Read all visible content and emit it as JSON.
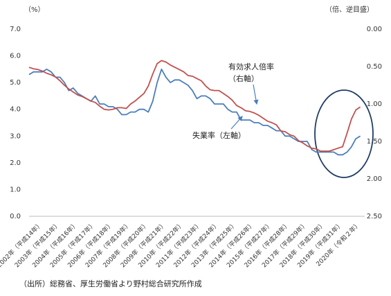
{
  "chart_data": {
    "type": "line",
    "y_unit_label": "（%）",
    "y2_unit_label": "（倍、逆目盛）",
    "source": "（出所）総務省、厚生労働省より野村総合研究所作成",
    "annotations": [
      "有効求人倍率",
      "（右軸）",
      "失業率（左軸）"
    ],
    "x": [
      2002,
      2002.25,
      2002.5,
      2002.75,
      2003,
      2003.25,
      2003.5,
      2003.75,
      2004,
      2004.25,
      2004.5,
      2004.75,
      2005,
      2005.25,
      2005.5,
      2005.75,
      2006,
      2006.25,
      2006.5,
      2006.75,
      2007,
      2007.25,
      2007.5,
      2007.75,
      2008,
      2008.25,
      2008.5,
      2008.75,
      2009,
      2009.25,
      2009.5,
      2009.75,
      2010,
      2010.25,
      2010.5,
      2010.75,
      2011,
      2011.25,
      2011.5,
      2011.75,
      2012,
      2012.25,
      2012.5,
      2012.75,
      2013,
      2013.25,
      2013.5,
      2013.75,
      2014,
      2014.25,
      2014.5,
      2014.75,
      2015,
      2015.25,
      2015.5,
      2015.75,
      2016,
      2016.25,
      2016.5,
      2016.75,
      2017,
      2017.25,
      2017.5,
      2017.75,
      2018,
      2018.25,
      2018.5,
      2018.75,
      2019,
      2019.25,
      2019.5,
      2019.75,
      2020,
      2020.25,
      2020.5,
      2020.75
    ],
    "xlim": [
      2002,
      2021
    ],
    "xticks": [
      {
        "value": 2002,
        "label": "2002年（平成14年）"
      },
      {
        "value": 2003,
        "label": "2003年（平成15年）"
      },
      {
        "value": 2004,
        "label": "2004年（平成16年）"
      },
      {
        "value": 2005,
        "label": "2005年（平成17年）"
      },
      {
        "value": 2006,
        "label": "2006年（平成18年）"
      },
      {
        "value": 2007,
        "label": "2007年（平成19年）"
      },
      {
        "value": 2008,
        "label": "2008年（平成20年）"
      },
      {
        "value": 2009,
        "label": "2009年（平成21年）"
      },
      {
        "value": 2010,
        "label": "2010年（平成22年）"
      },
      {
        "value": 2011,
        "label": "2011年（平成23年）"
      },
      {
        "value": 2012,
        "label": "2012年（平成24年）"
      },
      {
        "value": 2013,
        "label": "2013年（平成25年）"
      },
      {
        "value": 2014,
        "label": "2014年（平成26年）"
      },
      {
        "value": 2015,
        "label": "2015年（平成27年）"
      },
      {
        "value": 2016,
        "label": "2016年（平成28年）"
      },
      {
        "value": 2017,
        "label": "2017年（平成29年）"
      },
      {
        "value": 2018,
        "label": "2018年（平成30年）"
      },
      {
        "value": 2019,
        "label": "2019年（平成31年）"
      },
      {
        "value": 2020,
        "label": "2020年（令和２年）"
      }
    ],
    "ylim": [
      0,
      7
    ],
    "yticks": [
      {
        "value": 0,
        "label": "0.0"
      },
      {
        "value": 1,
        "label": "1.0"
      },
      {
        "value": 2,
        "label": "2.0"
      },
      {
        "value": 3,
        "label": "3.0"
      },
      {
        "value": 4,
        "label": "4.0"
      },
      {
        "value": 5,
        "label": "5.0"
      },
      {
        "value": 6,
        "label": "6.0"
      },
      {
        "value": 7,
        "label": "7.0"
      }
    ],
    "y2lim": [
      2.5,
      0
    ],
    "y2ticks": [
      {
        "value": 0,
        "label": "0.00"
      },
      {
        "value": 0.5,
        "label": "0.50"
      },
      {
        "value": 1,
        "label": "1.00"
      },
      {
        "value": 1.5,
        "label": "1.50"
      },
      {
        "value": 2,
        "label": "2.00"
      },
      {
        "value": 2.5,
        "label": "2.50"
      }
    ],
    "series": [
      {
        "color": "#4a7ebb",
        "axis": "y",
        "values": [
          5.3,
          5.4,
          5.4,
          5.4,
          5.5,
          5.4,
          5.2,
          5.2,
          5.0,
          4.7,
          4.8,
          4.6,
          4.5,
          4.4,
          4.3,
          4.5,
          4.2,
          4.2,
          4.1,
          4.1,
          4.0,
          3.8,
          3.8,
          3.9,
          3.9,
          4.0,
          4.0,
          3.9,
          4.3,
          5.0,
          5.5,
          5.2,
          5.0,
          5.1,
          5.1,
          5.0,
          4.9,
          4.7,
          4.4,
          4.5,
          4.5,
          4.4,
          4.2,
          4.2,
          4.2,
          4.0,
          3.9,
          3.9,
          3.6,
          3.6,
          3.6,
          3.5,
          3.5,
          3.4,
          3.4,
          3.3,
          3.2,
          3.2,
          3.0,
          3.0,
          2.9,
          2.8,
          2.8,
          2.8,
          2.5,
          2.4,
          2.4,
          2.4,
          2.4,
          2.4,
          2.3,
          2.3,
          2.4,
          2.6,
          2.9,
          3.0
        ]
      },
      {
        "color": "#c0504d",
        "axis": "y2",
        "values": [
          0.51,
          0.53,
          0.54,
          0.56,
          0.59,
          0.61,
          0.64,
          0.69,
          0.75,
          0.8,
          0.84,
          0.88,
          0.9,
          0.93,
          0.96,
          0.98,
          1.03,
          1.07,
          1.08,
          1.07,
          1.05,
          1.05,
          1.06,
          1.0,
          0.96,
          0.91,
          0.86,
          0.76,
          0.6,
          0.46,
          0.42,
          0.44,
          0.48,
          0.51,
          0.54,
          0.57,
          0.62,
          0.63,
          0.66,
          0.69,
          0.76,
          0.81,
          0.82,
          0.82,
          0.86,
          0.9,
          0.95,
          1.02,
          1.05,
          1.09,
          1.1,
          1.12,
          1.15,
          1.19,
          1.23,
          1.25,
          1.28,
          1.36,
          1.37,
          1.41,
          1.43,
          1.49,
          1.52,
          1.56,
          1.59,
          1.6,
          1.63,
          1.63,
          1.63,
          1.61,
          1.59,
          1.57,
          1.39,
          1.2,
          1.08,
          1.04
        ]
      }
    ]
  }
}
